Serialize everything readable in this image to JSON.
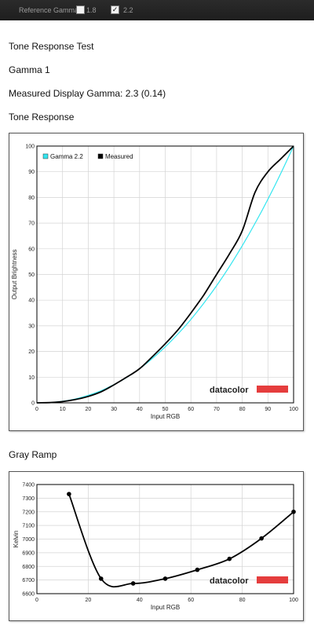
{
  "toolbar": {
    "label": "Reference Gamma",
    "option1": {
      "label": "1.8",
      "checked": false
    },
    "option2": {
      "label": "2.2",
      "checked": true
    }
  },
  "title": "Tone Response Test",
  "gamma_label": "Gamma 1",
  "measured_text": "Measured Display Gamma: 2.3 (0.14)",
  "section1": "Tone Response",
  "section2": "Gray Ramp",
  "brand": {
    "text": "datacolor",
    "color": "#e53d3d"
  },
  "chart_data": [
    {
      "type": "line",
      "title": "",
      "xlabel": "Input RGB",
      "ylabel": "Output Brightness",
      "xlim": [
        0,
        100
      ],
      "ylim": [
        0,
        100
      ],
      "xticks": [
        0,
        10,
        20,
        30,
        40,
        50,
        60,
        70,
        80,
        90,
        100
      ],
      "yticks": [
        0,
        10,
        20,
        30,
        40,
        50,
        60,
        70,
        80,
        90,
        100
      ],
      "grid": true,
      "legend": "top-left",
      "series": [
        {
          "name": "Gamma 2.2",
          "color": "#33e6f0",
          "x": [
            0,
            5,
            10,
            15,
            20,
            25,
            30,
            35,
            40,
            45,
            50,
            55,
            60,
            65,
            70,
            75,
            80,
            85,
            90,
            95,
            100
          ],
          "y": [
            0,
            0.1,
            0.6,
            1.5,
            2.9,
            4.7,
            7.1,
            9.9,
            13.3,
            17.3,
            21.8,
            26.9,
            32.5,
            38.8,
            45.6,
            53.1,
            61.2,
            69.9,
            79.3,
            89.3,
            100
          ]
        },
        {
          "name": "Measured",
          "color": "#000000",
          "x": [
            0,
            5,
            10,
            15,
            20,
            25,
            30,
            35,
            40,
            45,
            50,
            55,
            60,
            65,
            70,
            75,
            80,
            85,
            90,
            95,
            100
          ],
          "y": [
            0,
            0.1,
            0.5,
            1.3,
            2.5,
            4.3,
            7,
            10,
            13.3,
            18,
            23,
            28.5,
            35,
            42,
            50,
            58,
            67,
            82,
            90,
            95,
            100
          ]
        }
      ]
    },
    {
      "type": "line",
      "title": "",
      "xlabel": "Input RGB",
      "ylabel": "Kelvin",
      "xlim": [
        0,
        100
      ],
      "ylim": [
        6600,
        7400
      ],
      "xticks": [
        0,
        20,
        40,
        60,
        80,
        100
      ],
      "yticks": [
        6600,
        6700,
        6800,
        6900,
        7000,
        7100,
        7200,
        7300,
        7400
      ],
      "grid": true,
      "series": [
        {
          "name": "",
          "color": "#000000",
          "x": [
            12.5,
            25,
            37.5,
            50,
            62.5,
            75,
            87.5,
            100
          ],
          "y": [
            7330,
            6710,
            6675,
            6710,
            6775,
            6855,
            7005,
            7200
          ]
        }
      ]
    }
  ]
}
